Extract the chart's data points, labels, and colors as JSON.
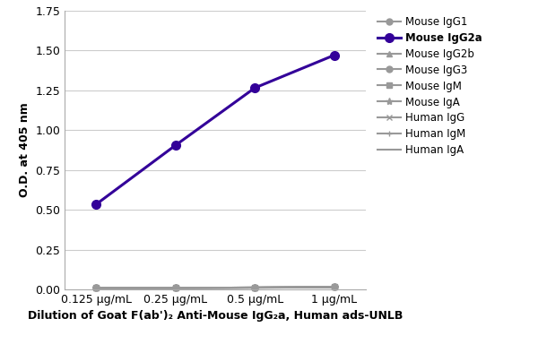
{
  "x_labels": [
    "0.125 μg/mL",
    "0.25 μg/mL",
    "0.5 μg/mL",
    "1 μg/mL"
  ],
  "x_values": [
    0,
    1,
    2,
    3
  ],
  "series": [
    {
      "label": "Mouse IgG1",
      "values": [
        0.01,
        0.01,
        0.01,
        0.015
      ],
      "color": "#999999",
      "marker": "o",
      "linewidth": 1.5,
      "markersize": 5,
      "bold": false
    },
    {
      "label": "Mouse IgG2a",
      "values": [
        0.535,
        0.905,
        1.265,
        1.47
      ],
      "color": "#330099",
      "marker": "o",
      "linewidth": 2.2,
      "markersize": 7,
      "bold": true
    },
    {
      "label": "Mouse IgG2b",
      "values": [
        0.01,
        0.01,
        0.012,
        0.015
      ],
      "color": "#999999",
      "marker": "^",
      "linewidth": 1.5,
      "markersize": 5,
      "bold": false
    },
    {
      "label": "Mouse IgG3",
      "values": [
        0.01,
        0.01,
        0.012,
        0.015
      ],
      "color": "#999999",
      "marker": "o",
      "linewidth": 1.5,
      "markersize": 5,
      "bold": false
    },
    {
      "label": "Mouse IgM",
      "values": [
        0.01,
        0.01,
        0.012,
        0.015
      ],
      "color": "#999999",
      "marker": "s",
      "linewidth": 1.5,
      "markersize": 5,
      "bold": false
    },
    {
      "label": "Mouse IgA",
      "values": [
        0.01,
        0.01,
        0.012,
        0.015
      ],
      "color": "#999999",
      "marker": "*",
      "linewidth": 1.5,
      "markersize": 6,
      "bold": false
    },
    {
      "label": "Human IgG",
      "values": [
        0.01,
        0.01,
        0.012,
        0.015
      ],
      "color": "#999999",
      "marker": "x",
      "linewidth": 1.5,
      "markersize": 5,
      "bold": false
    },
    {
      "label": "Human IgM",
      "values": [
        0.01,
        0.01,
        0.012,
        0.015
      ],
      "color": "#999999",
      "marker": "+",
      "linewidth": 1.5,
      "markersize": 5,
      "bold": false
    },
    {
      "label": "Human IgA",
      "values": [
        0.01,
        0.01,
        0.012,
        0.015
      ],
      "color": "#999999",
      "marker": "None",
      "linewidth": 1.5,
      "markersize": 5,
      "bold": false
    }
  ],
  "ylabel": "O.D. at 405 nm",
  "xlabel": "Dilution of Goat F(ab')₂ Anti-Mouse IgG₂a, Human ads-UNLB",
  "ylim": [
    0,
    1.75
  ],
  "yticks": [
    0.0,
    0.25,
    0.5,
    0.75,
    1.0,
    1.25,
    1.5,
    1.75
  ],
  "background_color": "#ffffff",
  "grid_color": "#cccccc",
  "axis_fontsize": 9,
  "tick_fontsize": 9,
  "legend_fontsize": 8.5
}
